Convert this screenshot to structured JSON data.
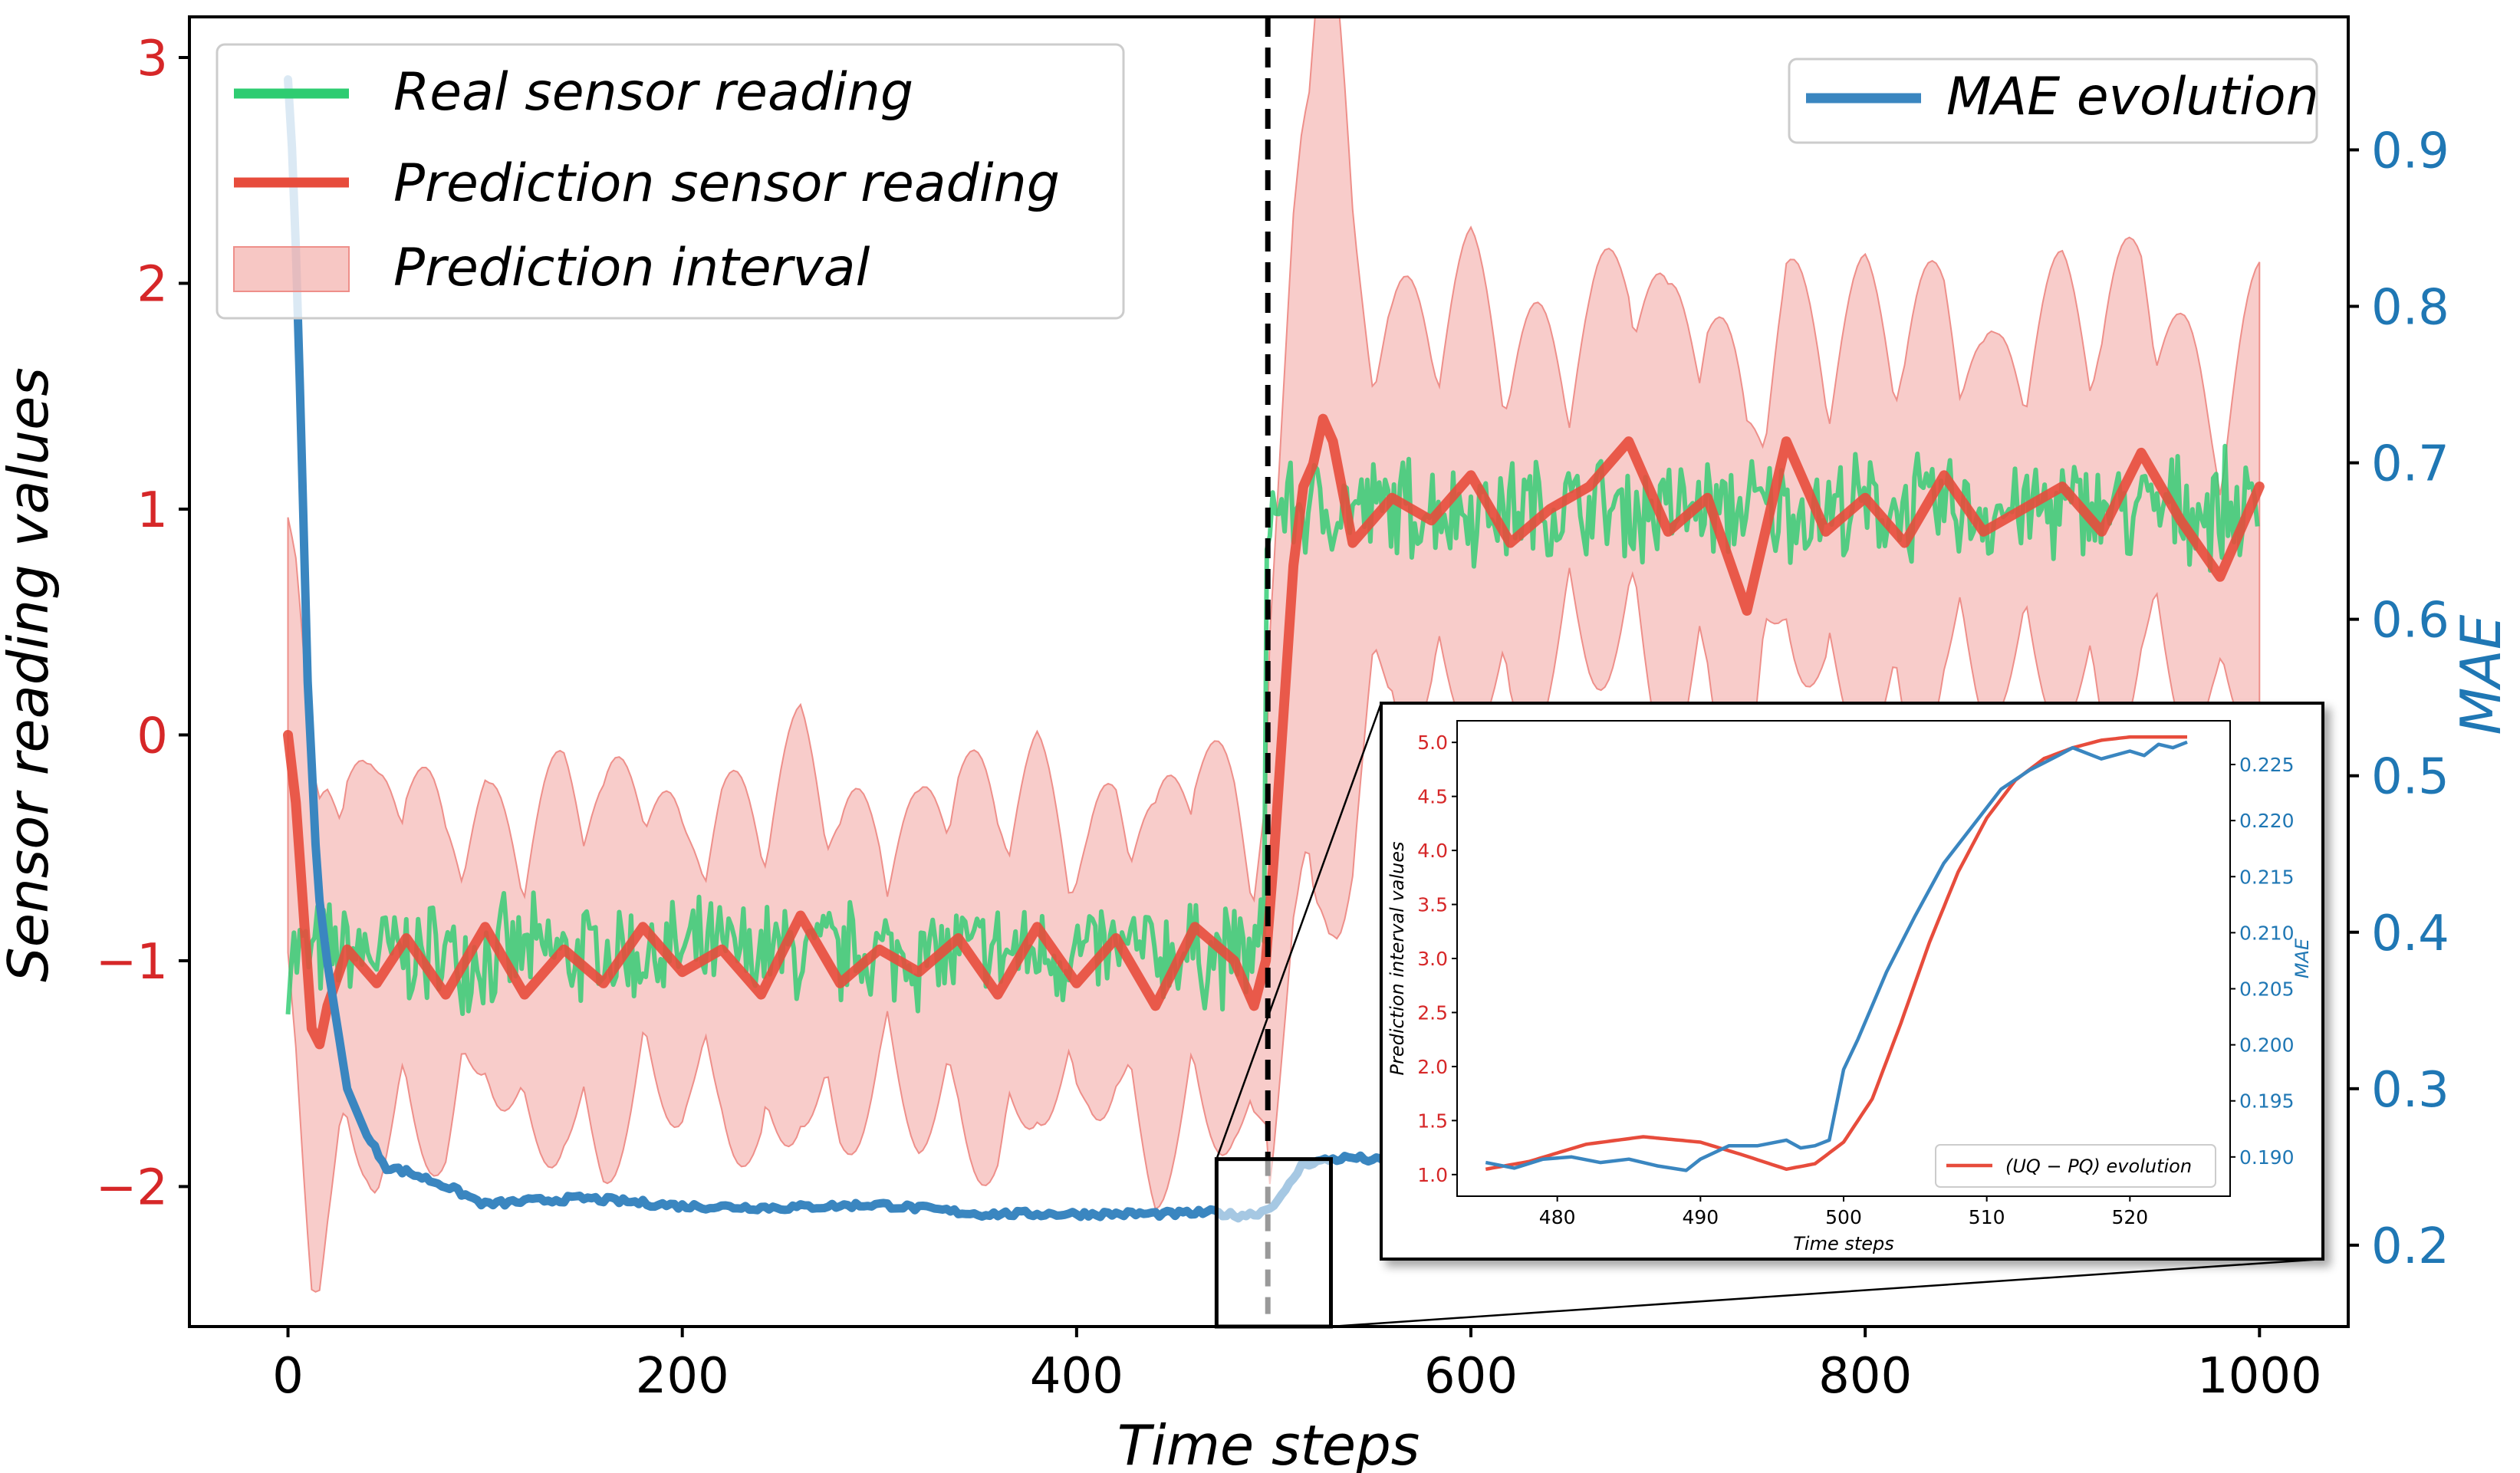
{
  "chart_data": {
    "type": "line",
    "main": {
      "xlabel": "Time steps",
      "ylabel_left": "Sensor reading values",
      "ylabel_right": "MAE",
      "xlim": [
        -50,
        1045
      ],
      "ylim_left": [
        -2.62,
        3.18
      ],
      "ylim_right": [
        0.148,
        0.985
      ],
      "x_ticks": [
        0,
        200,
        400,
        600,
        800,
        1000
      ],
      "x_tick_labels": [
        "0",
        "200",
        "400",
        "600",
        "800",
        "1000"
      ],
      "left_ticks": [
        -2,
        -1,
        0,
        1,
        2,
        3
      ],
      "left_tick_labels": [
        "−2",
        "−1",
        "0",
        "1",
        "2",
        "3"
      ],
      "right_ticks": [
        0.2,
        0.3,
        0.4,
        0.5,
        0.6,
        0.7,
        0.8,
        0.9
      ],
      "right_tick_labels": [
        "0.2",
        "0.3",
        "0.4",
        "0.5",
        "0.6",
        "0.7",
        "0.8",
        "0.9"
      ],
      "change_point_x": 497,
      "legend_left": {
        "real": "Real sensor reading",
        "prediction": "Prediction sensor reading",
        "interval": "Prediction interval"
      },
      "legend_right": {
        "mae": "MAE evolution"
      },
      "series": [
        {
          "name": "Real sensor reading",
          "color": "#2ecc71",
          "regime_means": [
            [
              0,
              496,
              -0.97
            ],
            [
              497,
              1000,
              1.0
            ]
          ],
          "noise_amplitude": 0.2
        },
        {
          "name": "Prediction sensor reading",
          "color": "#e74c3c",
          "x": [
            0,
            4,
            8,
            12,
            16,
            20,
            30,
            45,
            60,
            80,
            100,
            120,
            140,
            160,
            180,
            200,
            220,
            240,
            260,
            280,
            300,
            320,
            340,
            360,
            380,
            400,
            420,
            440,
            460,
            480,
            490,
            496,
            500,
            505,
            510,
            515,
            520,
            525,
            530,
            540,
            560,
            580,
            600,
            620,
            640,
            660,
            680,
            700,
            720,
            740,
            760,
            780,
            800,
            820,
            840,
            860,
            880,
            900,
            920,
            940,
            960,
            980,
            1000
          ],
          "y": [
            0.0,
            -0.3,
            -0.8,
            -1.3,
            -1.37,
            -1.2,
            -0.95,
            -1.1,
            -0.9,
            -1.15,
            -0.85,
            -1.15,
            -0.95,
            -1.1,
            -0.85,
            -1.05,
            -0.95,
            -1.15,
            -0.8,
            -1.1,
            -0.95,
            -1.05,
            -0.9,
            -1.15,
            -0.85,
            -1.1,
            -0.9,
            -1.2,
            -0.85,
            -1.0,
            -1.2,
            -1.0,
            -0.55,
            0.1,
            0.75,
            1.1,
            1.2,
            1.4,
            1.3,
            0.85,
            1.05,
            0.95,
            1.15,
            0.85,
            1.0,
            1.1,
            1.3,
            0.9,
            1.05,
            0.55,
            1.3,
            0.9,
            1.05,
            0.85,
            1.15,
            0.9,
            1.0,
            1.1,
            0.9,
            1.25,
            0.95,
            0.7,
            1.1
          ]
        },
        {
          "name": "MAE evolution",
          "color": "#3a86c0",
          "x": [
            0,
            3,
            6,
            10,
            15,
            20,
            30,
            40,
            50,
            60,
            80,
            100,
            120,
            150,
            200,
            250,
            300,
            350,
            400,
            450,
            470,
            480,
            490,
            497,
            500,
            505,
            510,
            515,
            520,
            530,
            540,
            560,
            580
          ],
          "y": [
            0.945,
            0.88,
            0.75,
            0.56,
            0.43,
            0.38,
            0.3,
            0.27,
            0.25,
            0.247,
            0.238,
            0.226,
            0.228,
            0.23,
            0.225,
            0.224,
            0.226,
            0.22,
            0.22,
            0.22,
            0.221,
            0.219,
            0.22,
            0.223,
            0.227,
            0.232,
            0.243,
            0.252,
            0.253,
            0.255,
            0.256,
            0.253,
            0.25
          ]
        }
      ]
    },
    "inset": {
      "xlabel": "Time steps",
      "ylabel_left": "Prediction interval values",
      "ylabel_right": "MAE",
      "xlim": [
        473,
        527
      ],
      "ylim_left": [
        0.8,
        5.2
      ],
      "ylim_right": [
        0.1865,
        0.2289
      ],
      "x_ticks": [
        480,
        490,
        500,
        510,
        520
      ],
      "x_tick_labels": [
        "480",
        "490",
        "500",
        "510",
        "520"
      ],
      "left_ticks": [
        1.0,
        1.5,
        2.0,
        2.5,
        3.0,
        3.5,
        4.0,
        4.5,
        5.0
      ],
      "left_tick_labels": [
        "1.0",
        "1.5",
        "2.0",
        "2.5",
        "3.0",
        "3.5",
        "4.0",
        "4.5",
        "5.0"
      ],
      "right_ticks": [
        0.19,
        0.195,
        0.2,
        0.205,
        0.21,
        0.215,
        0.22,
        0.225
      ],
      "right_tick_labels": [
        "0.190",
        "0.195",
        "0.200",
        "0.205",
        "0.210",
        "0.215",
        "0.220",
        "0.225"
      ],
      "legend": "(UQ − PQ) evolution",
      "series": [
        {
          "name": "(UQ − PQ) evolution",
          "color": "#e74c3c",
          "x": [
            475,
            478,
            482,
            486,
            490,
            493,
            496,
            498,
            500,
            502,
            504,
            506,
            508,
            510,
            512,
            514,
            516,
            518,
            520,
            522,
            524
          ],
          "y": [
            1.05,
            1.12,
            1.28,
            1.35,
            1.3,
            1.18,
            1.05,
            1.1,
            1.3,
            1.7,
            2.4,
            3.15,
            3.8,
            4.3,
            4.65,
            4.85,
            4.95,
            5.02,
            5.05,
            5.05,
            5.05
          ]
        },
        {
          "name": "MAE",
          "color": "#3a86c0",
          "x": [
            475,
            477,
            479,
            481,
            483,
            485,
            487,
            489,
            490,
            492,
            494,
            496,
            497,
            498,
            499,
            500,
            501,
            503,
            505,
            507,
            509,
            511,
            513,
            515,
            516,
            518,
            520,
            521,
            522,
            523,
            524
          ],
          "y": [
            0.1895,
            0.189,
            0.1898,
            0.19,
            0.1895,
            0.1898,
            0.1892,
            0.1888,
            0.1898,
            0.191,
            0.191,
            0.1915,
            0.1908,
            0.191,
            0.1915,
            0.1978,
            0.2005,
            0.2065,
            0.2115,
            0.2162,
            0.2195,
            0.2228,
            0.2245,
            0.2258,
            0.2265,
            0.2255,
            0.2262,
            0.2258,
            0.2268,
            0.2265,
            0.227
          ]
        }
      ]
    }
  }
}
